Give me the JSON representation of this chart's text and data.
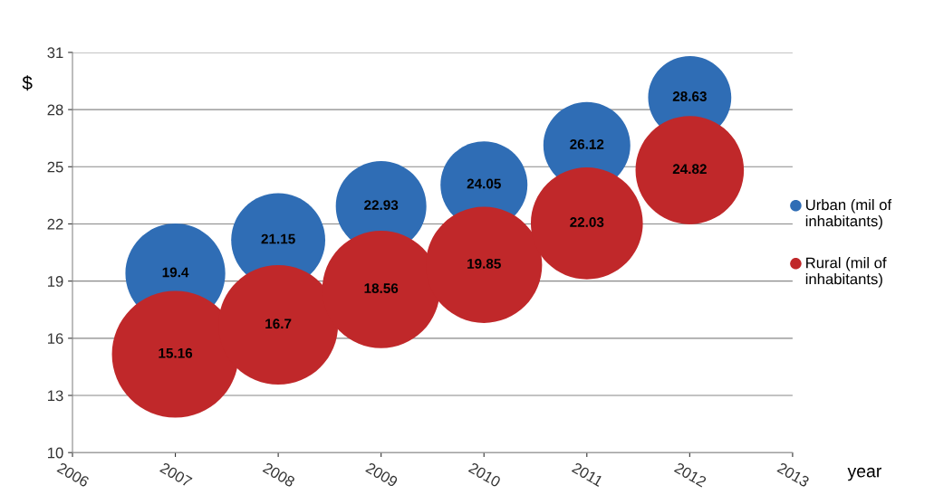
{
  "chart_data": {
    "type": "bubble",
    "xlabel": "year",
    "ylabel": "$",
    "x": [
      2007,
      2008,
      2009,
      2010,
      2011,
      2012
    ],
    "series": [
      {
        "name": "Urban (mil of inhabitants)",
        "color": "#2f6db5",
        "values": [
          19.4,
          21.15,
          22.93,
          24.05,
          26.12,
          28.63
        ],
        "sizes": [
          0.62,
          0.55,
          0.51,
          0.47,
          0.47,
          0.43
        ]
      },
      {
        "name": "Rural (mil of inhabitants)",
        "color": "#c0282a",
        "values": [
          15.16,
          16.7,
          18.56,
          19.85,
          22.03,
          24.82
        ],
        "sizes": [
          1,
          0.89,
          0.86,
          0.84,
          0.78,
          0.73
        ]
      }
    ],
    "xlim": [
      2006,
      2013
    ],
    "xticks": [
      2006,
      2007,
      2008,
      2009,
      2010,
      2011,
      2012,
      2013
    ],
    "ylim": [
      10,
      31
    ],
    "yticks": [
      10,
      13,
      16,
      19,
      22,
      25,
      28,
      31
    ],
    "grid": "y",
    "legend": "right",
    "data_labels": true
  }
}
